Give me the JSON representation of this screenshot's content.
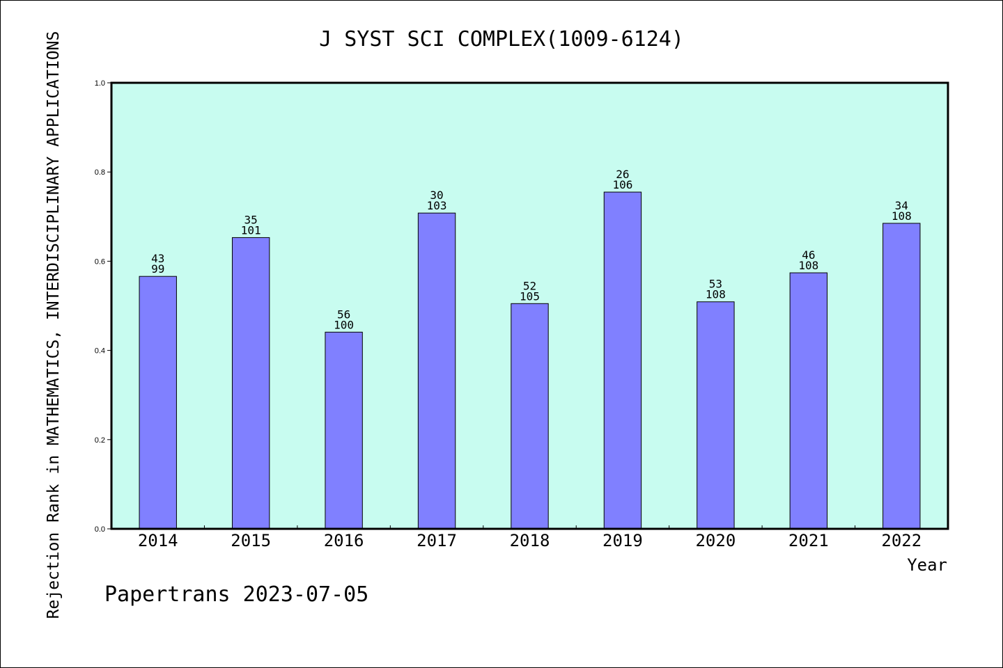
{
  "chart_data": {
    "type": "bar",
    "title": "J SYST SCI COMPLEX(1009-6124)",
    "xlabel": "Year",
    "ylabel": "Rejection Rank in MATHEMATICS, INTERDISCIPLINARY APPLICATIONS",
    "ylim": [
      0,
      1.0
    ],
    "yticks": [
      "0.0",
      "0.2",
      "0.4",
      "0.6",
      "0.8",
      "1.0"
    ],
    "grid": false,
    "categories": [
      "2014",
      "2015",
      "2016",
      "2017",
      "2018",
      "2019",
      "2020",
      "2021",
      "2022"
    ],
    "values": [
      0.566,
      0.653,
      0.441,
      0.708,
      0.505,
      0.755,
      0.509,
      0.574,
      0.685
    ],
    "labels_top": [
      "43",
      "35",
      "56",
      "30",
      "52",
      "26",
      "53",
      "46",
      "34"
    ],
    "labels_bottom": [
      "99",
      "101",
      "100",
      "103",
      "105",
      "106",
      "108",
      "108",
      "108"
    ],
    "colors": {
      "bar": "#8080ff",
      "plot_background": "#c8fcf0",
      "frame": "#000000"
    }
  },
  "footer": "Papertrans 2023-07-05"
}
